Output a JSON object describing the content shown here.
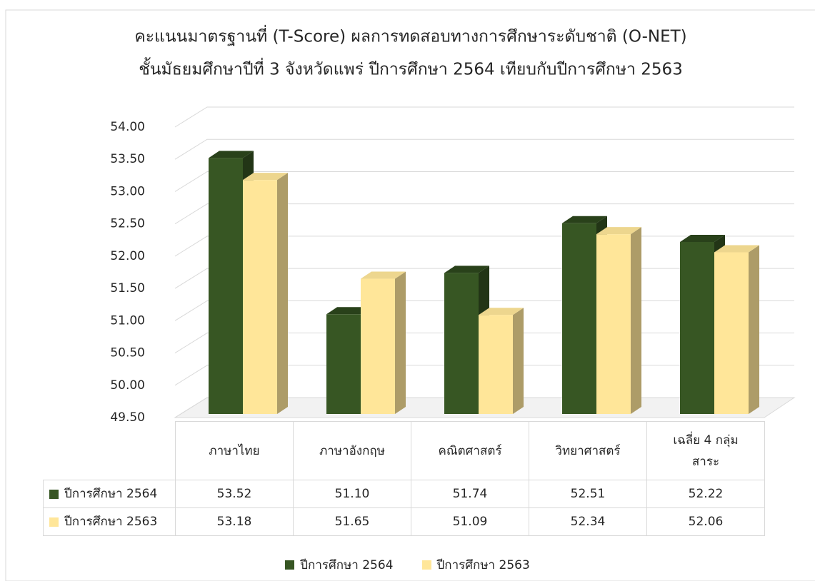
{
  "chart_data": {
    "type": "bar3d",
    "title": "คะแนนมาตรฐานที่ (T-Score) ผลการทดสอบทางการศึกษาระดับชาติ (O-NET)",
    "subtitle": "ชั้นมัธยมศึกษาปีที่ 3 จังหวัดแพร่ ปีการศึกษา 2564 เทียบกับปีการศึกษา 2563",
    "categories": [
      "ภาษาไทย",
      "ภาษาอังกฤษ",
      "คณิตศาสตร์",
      "วิทยาศาสตร์",
      "เฉลี่ย 4 กลุ่ม สาระ"
    ],
    "series": [
      {
        "name": "ปีการศึกษา 2564",
        "color": "#375623",
        "values": [
          53.52,
          51.1,
          51.74,
          52.51,
          52.22
        ],
        "value_labels": [
          "53.52",
          "51.10",
          "51.74",
          "52.51",
          "52.22"
        ]
      },
      {
        "name": "ปีการศึกษา 2563",
        "color": "#ffe699",
        "values": [
          53.18,
          51.65,
          51.09,
          52.34,
          52.06
        ],
        "value_labels": [
          "53.18",
          "51.65",
          "51.09",
          "52.34",
          "52.06"
        ]
      }
    ],
    "ylim": [
      49.5,
      54
    ],
    "yticks": [
      {
        "value": 49.5,
        "label": "49.50"
      },
      {
        "value": 50,
        "label": "50.00"
      },
      {
        "value": 50.5,
        "label": "50.50"
      },
      {
        "value": 51,
        "label": "51.00"
      },
      {
        "value": 51.5,
        "label": "51.50"
      },
      {
        "value": 52,
        "label": "52.00"
      },
      {
        "value": 52.5,
        "label": "52.50"
      },
      {
        "value": 53,
        "label": "53.00"
      },
      {
        "value": 53.5,
        "label": "53.50"
      },
      {
        "value": 54,
        "label": "54.00"
      }
    ],
    "grid": true,
    "legend": "bottom"
  }
}
